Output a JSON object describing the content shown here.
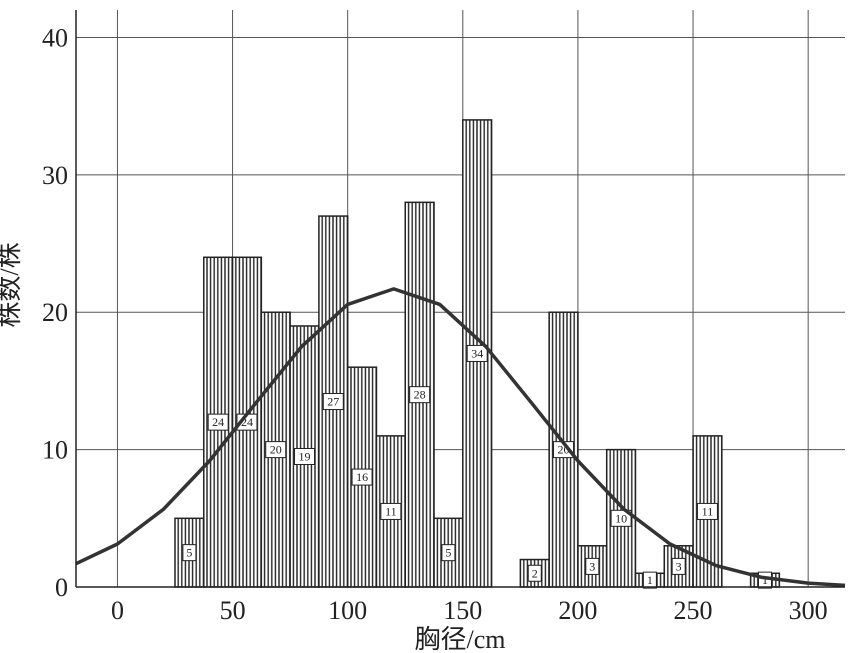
{
  "chart_data": {
    "type": "histogram",
    "x_label": "胸径/cm",
    "y_label": "株数/株",
    "bins": [
      25,
      37.5,
      50,
      62.5,
      75,
      87.5,
      100,
      112.5,
      125,
      137.5,
      150,
      162.5,
      175,
      187.5,
      200,
      212.5,
      225,
      237.5,
      250,
      262.5,
      275,
      287.5
    ],
    "counts": [
      5,
      24,
      24,
      20,
      19,
      27,
      16,
      11,
      28,
      5,
      34,
      0,
      2,
      20,
      3,
      10,
      1,
      3,
      11,
      0,
      1
    ],
    "curve": {
      "x": [
        -18,
        0,
        20,
        40,
        60,
        80,
        100,
        120,
        140,
        160,
        180,
        200,
        220,
        240,
        260,
        280,
        300,
        316
      ],
      "y": [
        1.7,
        3.13,
        5.66,
        9.18,
        13.37,
        17.5,
        20.57,
        21.7,
        20.57,
        17.5,
        13.37,
        9.18,
        5.66,
        3.13,
        1.56,
        0.7,
        0.28,
        0.12
      ]
    },
    "xlim": [
      -18,
      316
    ],
    "ylim": [
      0,
      42
    ],
    "xticks": [
      0,
      50,
      100,
      150,
      200,
      250,
      300
    ],
    "yticks": [
      0,
      10,
      20,
      30,
      40
    ],
    "grid": true,
    "color": "#222222"
  }
}
